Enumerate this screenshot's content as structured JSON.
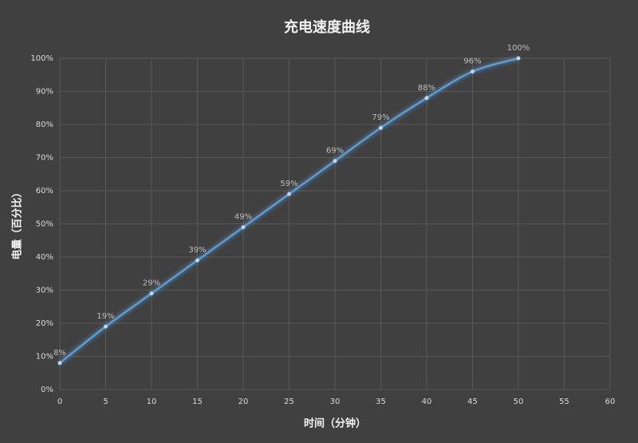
{
  "chart_data": {
    "type": "line",
    "title": "充电速度曲线",
    "x_label": "时间（分钟）",
    "y_label": "电量（百分比）",
    "x": [
      0,
      5,
      10,
      15,
      20,
      25,
      30,
      35,
      40,
      45,
      50
    ],
    "values": [
      8,
      19,
      29,
      39,
      49,
      59,
      69,
      79,
      88,
      96,
      100
    ],
    "value_labels": [
      "8%",
      "19%",
      "29%",
      "39%",
      "49%",
      "59%",
      "69%",
      "79%",
      "88%",
      "96%",
      "100%"
    ],
    "color": "#5b9bd5",
    "xlim": [
      0,
      60
    ],
    "xticks": [
      0,
      5,
      10,
      15,
      20,
      25,
      30,
      35,
      40,
      45,
      50,
      55,
      60
    ],
    "ylim": [
      0,
      100
    ],
    "yticks": [
      {
        "value": 0,
        "label": "0%"
      },
      {
        "value": 10,
        "label": "10%"
      },
      {
        "value": 20,
        "label": "20%"
      },
      {
        "value": 30,
        "label": "30%"
      },
      {
        "value": 40,
        "label": "40%"
      },
      {
        "value": 50,
        "label": "50%"
      },
      {
        "value": 60,
        "label": "60%"
      },
      {
        "value": 70,
        "label": "70%"
      },
      {
        "value": 80,
        "label": "80%"
      },
      {
        "value": 90,
        "label": "90%"
      },
      {
        "value": 100,
        "label": "100%"
      }
    ],
    "grid": true
  }
}
